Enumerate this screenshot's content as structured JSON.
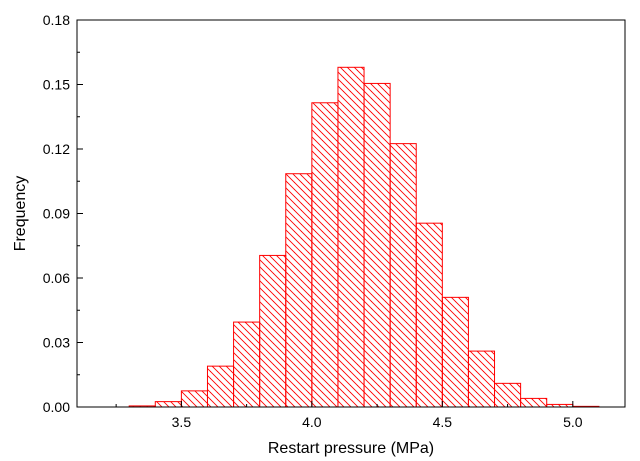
{
  "chart_data": {
    "type": "bar",
    "subtype": "histogram",
    "xlabel": "Restart pressure (MPa)",
    "ylabel": "Frequency",
    "xlim": [
      3.1,
      5.2
    ],
    "ylim": [
      0,
      0.18
    ],
    "xticks": [
      "3.5",
      "4.0",
      "4.5",
      "5.0"
    ],
    "yticks": [
      "0.00",
      "0.03",
      "0.06",
      "0.09",
      "0.12",
      "0.15",
      "0.18"
    ],
    "bin_width": 0.1,
    "bins": [
      {
        "start": 3.1,
        "end": 3.2,
        "value": 0.0
      },
      {
        "start": 3.2,
        "end": 3.3,
        "value": 0.0
      },
      {
        "start": 3.3,
        "end": 3.4,
        "value": 0.0005
      },
      {
        "start": 3.4,
        "end": 3.5,
        "value": 0.0025
      },
      {
        "start": 3.5,
        "end": 3.6,
        "value": 0.0075
      },
      {
        "start": 3.6,
        "end": 3.7,
        "value": 0.019
      },
      {
        "start": 3.7,
        "end": 3.8,
        "value": 0.0395
      },
      {
        "start": 3.8,
        "end": 3.9,
        "value": 0.0705
      },
      {
        "start": 3.9,
        "end": 4.0,
        "value": 0.1085
      },
      {
        "start": 4.0,
        "end": 4.1,
        "value": 0.1415
      },
      {
        "start": 4.1,
        "end": 4.2,
        "value": 0.158
      },
      {
        "start": 4.2,
        "end": 4.3,
        "value": 0.1505
      },
      {
        "start": 4.3,
        "end": 4.4,
        "value": 0.1225
      },
      {
        "start": 4.4,
        "end": 4.5,
        "value": 0.0855
      },
      {
        "start": 4.5,
        "end": 4.6,
        "value": 0.051
      },
      {
        "start": 4.6,
        "end": 4.7,
        "value": 0.026
      },
      {
        "start": 4.7,
        "end": 4.8,
        "value": 0.011
      },
      {
        "start": 4.8,
        "end": 4.9,
        "value": 0.004
      },
      {
        "start": 4.9,
        "end": 5.0,
        "value": 0.0012
      },
      {
        "start": 5.0,
        "end": 5.1,
        "value": 0.0003
      },
      {
        "start": 5.1,
        "end": 5.2,
        "value": 0.0
      }
    ],
    "bar_color": "#ff0000",
    "fill_pattern": "diagonal-hatch",
    "grid": false,
    "legend": "none"
  }
}
